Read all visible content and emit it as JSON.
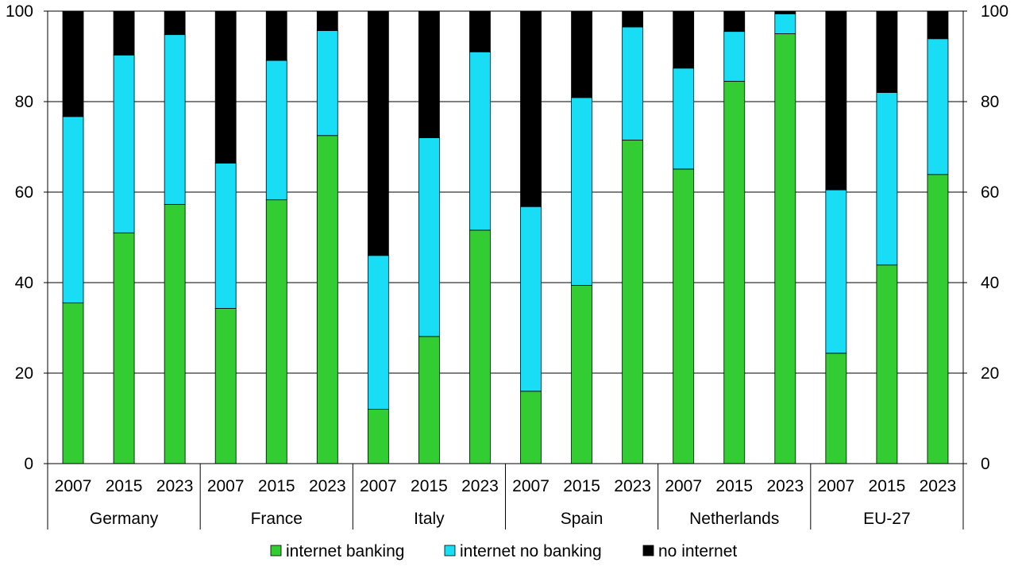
{
  "chart_data": {
    "type": "bar",
    "stacked": true,
    "groups": [
      "Germany",
      "France",
      "Italy",
      "Spain",
      "Netherlands",
      "EU-27"
    ],
    "years": [
      "2007",
      "2015",
      "2023"
    ],
    "ylim": [
      0,
      100
    ],
    "yticks": [
      "0",
      "20",
      "40",
      "60",
      "80",
      "100"
    ],
    "grid": true,
    "legend_position": "bottom",
    "series": [
      {
        "name": "internet banking",
        "color": "#33cc33",
        "values": [
          35.5,
          51,
          57.3,
          34.3,
          58.3,
          72.5,
          12,
          28.1,
          51.6,
          16,
          39.4,
          71.5,
          65.1,
          84.5,
          95,
          24.4,
          43.9,
          63.9
        ]
      },
      {
        "name": "internet no banking",
        "color": "#19dcf5",
        "values": [
          41.2,
          39.3,
          37.5,
          32.1,
          30.8,
          23.2,
          34,
          43.9,
          39.4,
          40.8,
          41.5,
          25,
          22.3,
          11,
          4.4,
          36.1,
          38.1,
          30
        ]
      },
      {
        "name": "no internet",
        "color": "#000000",
        "values": [
          23.3,
          9.7,
          5.2,
          33.6,
          10.9,
          4.3,
          54,
          28,
          9,
          43.2,
          19.1,
          3.5,
          12.6,
          4.5,
          0.6,
          39.5,
          18,
          6.1
        ]
      }
    ]
  }
}
